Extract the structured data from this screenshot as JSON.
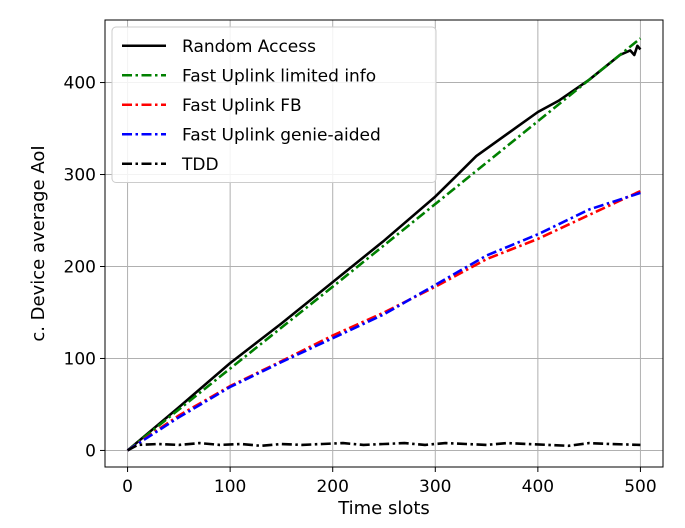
{
  "chart_data": {
    "type": "line",
    "xlabel": "Time slots",
    "ylabel": "c. Device average AoI",
    "xlim": [
      -22,
      522
    ],
    "ylim": [
      -18,
      468
    ],
    "xticks": [
      0,
      100,
      200,
      300,
      400,
      500
    ],
    "yticks": [
      0,
      100,
      200,
      300,
      400
    ],
    "grid": true,
    "legend_position": "top-left",
    "series": [
      {
        "name": "Random Access",
        "color": "#000000",
        "dash": "solid",
        "x": [
          0,
          50,
          100,
          150,
          200,
          250,
          300,
          320,
          340,
          380,
          400,
          420,
          450,
          480,
          490,
          494,
          497,
          500
        ],
        "y": [
          0,
          47,
          95,
          138,
          183,
          228,
          276,
          298,
          320,
          352,
          368,
          380,
          403,
          430,
          435,
          430,
          440,
          436
        ]
      },
      {
        "name": "Fast Uplink limited info",
        "color": "#008000",
        "dash": "dashdot",
        "x": [
          0,
          100,
          200,
          300,
          400,
          500
        ],
        "y": [
          0,
          89,
          178,
          268,
          358,
          448
        ]
      },
      {
        "name": "Fast Uplink FB",
        "color": "#ff0000",
        "dash": "dashdot",
        "x": [
          0,
          50,
          100,
          150,
          200,
          250,
          300,
          350,
          400,
          450,
          500
        ],
        "y": [
          0,
          38,
          70,
          97,
          125,
          150,
          178,
          208,
          230,
          256,
          282
        ]
      },
      {
        "name": "Fast Uplink genie-aided",
        "color": "#0000ff",
        "dash": "dashdot",
        "x": [
          0,
          50,
          100,
          150,
          200,
          250,
          300,
          350,
          400,
          450,
          500
        ],
        "y": [
          0,
          36,
          69,
          96,
          122,
          148,
          180,
          212,
          235,
          262,
          280
        ]
      },
      {
        "name": "TDD",
        "color": "#000000",
        "dash": "dashdot",
        "x": [
          0,
          10,
          30,
          50,
          70,
          90,
          110,
          130,
          150,
          170,
          190,
          210,
          230,
          250,
          270,
          290,
          310,
          330,
          350,
          370,
          390,
          410,
          430,
          450,
          470,
          500
        ],
        "y": [
          0,
          6,
          7,
          6,
          8,
          6,
          7,
          5,
          7,
          6,
          7,
          8,
          6,
          7,
          8,
          6,
          8,
          7,
          6,
          8,
          7,
          6,
          5,
          8,
          7,
          6
        ]
      }
    ]
  }
}
